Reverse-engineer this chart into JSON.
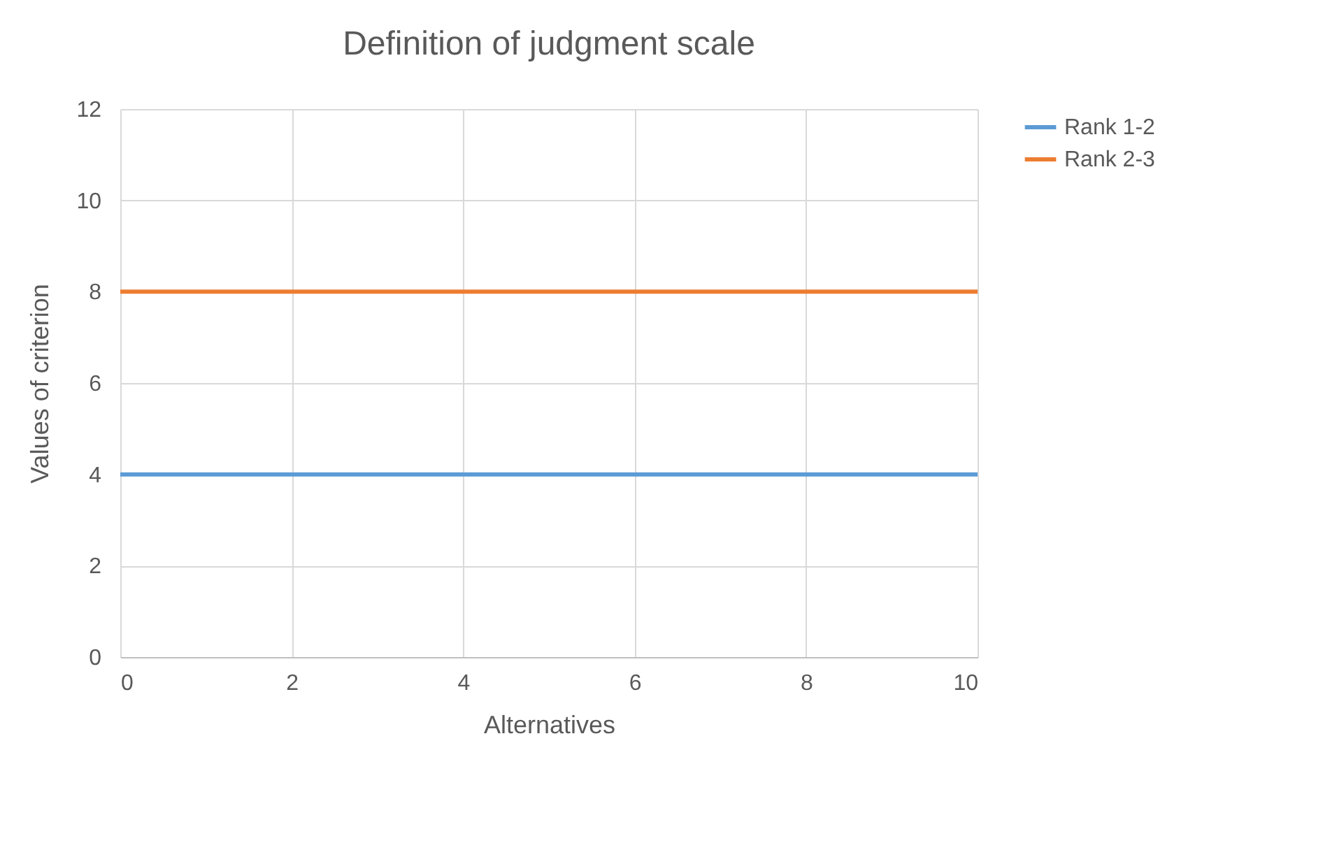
{
  "chart_data": {
    "type": "line",
    "title": "Definition of judgment scale",
    "xlabel": "Alternatives",
    "ylabel": "Values of criterion",
    "x": [
      0,
      10
    ],
    "series": [
      {
        "name": "Rank 1-2",
        "color": "#5b9bd5",
        "values": [
          4,
          4
        ]
      },
      {
        "name": "Rank 2-3",
        "color": "#ed7d31",
        "values": [
          8,
          8
        ]
      }
    ],
    "xlim": [
      0,
      10
    ],
    "xticks": [
      0,
      2,
      4,
      6,
      8,
      10
    ],
    "ylim": [
      0,
      12
    ],
    "yticks": [
      0,
      2,
      4,
      6,
      8,
      10,
      12
    ],
    "grid": true,
    "legend": "right"
  }
}
